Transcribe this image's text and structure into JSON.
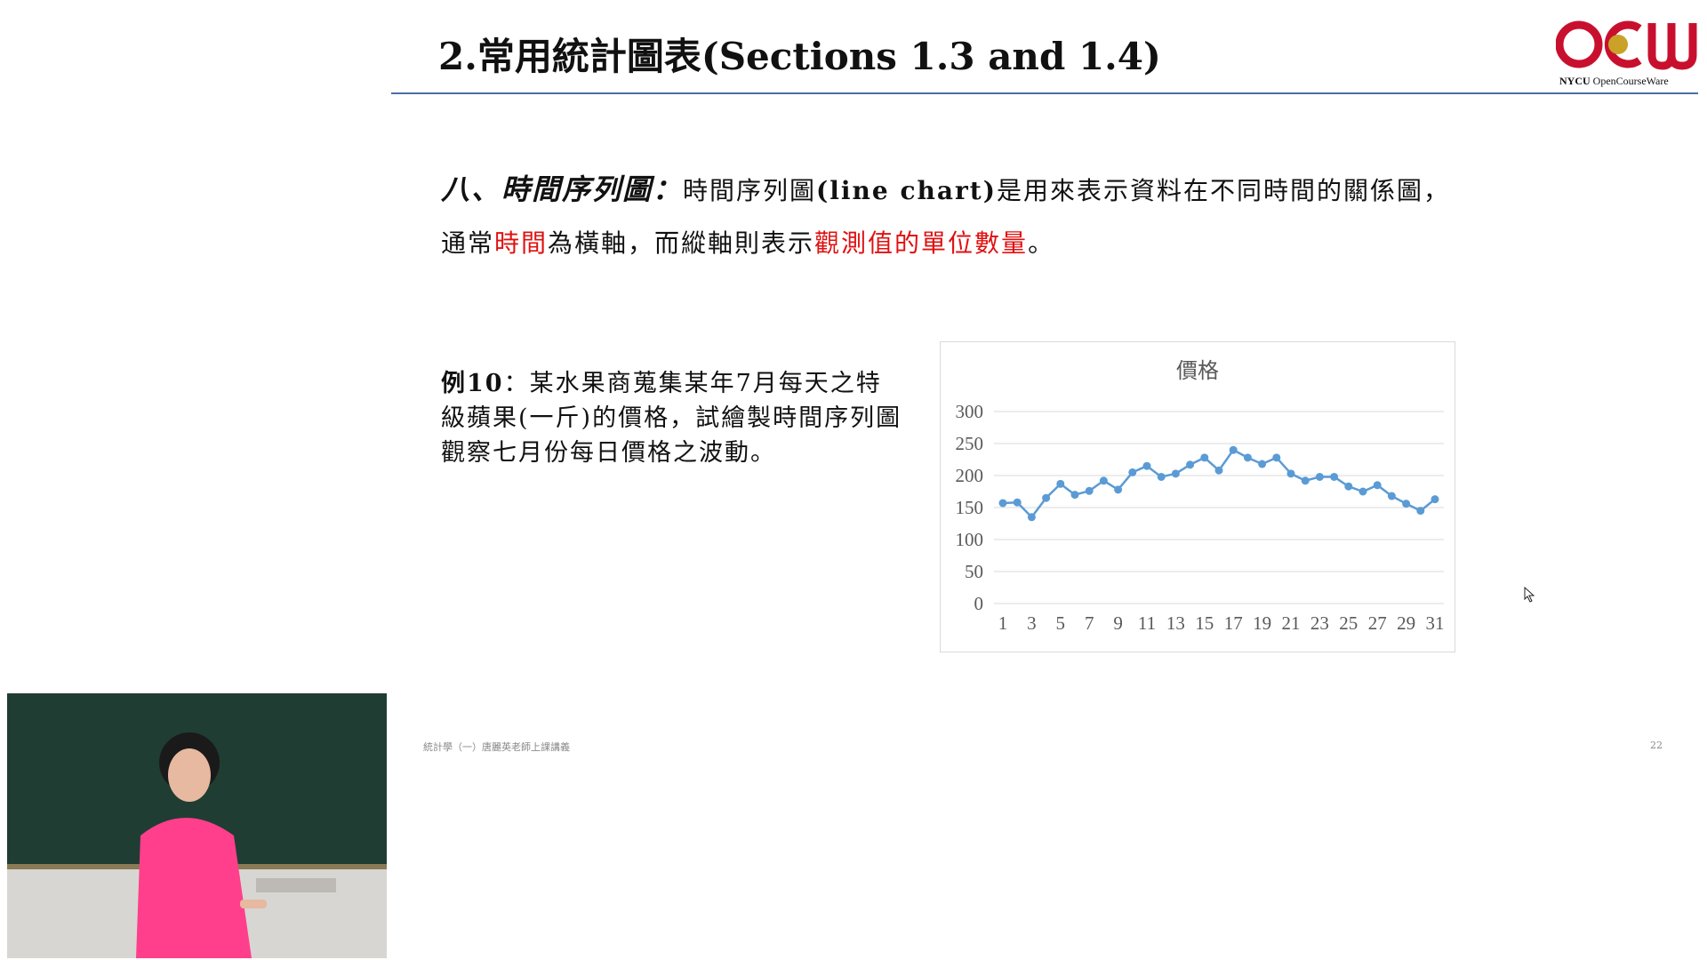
{
  "slide": {
    "title": "2.常用統計圖表(Sections 1.3 and 1.4)",
    "page_number": "22",
    "footer": "統計學（一）唐麗英老師上課講義"
  },
  "logo": {
    "brand_text": "NYCU",
    "brand_sub": " OpenCourseWare",
    "colors": {
      "red": "#c8102e",
      "gold": "#c9a227"
    }
  },
  "definition": {
    "term": "八、時間序列圖：",
    "line1_a": "時間序列圖",
    "line1_b": "(line chart)",
    "line1_c": "是用來表示資料在不同時間的關係圖，",
    "line2_a": "通常",
    "line2_red1": "時間",
    "line2_b": "為橫軸，而縱軸則表示",
    "line2_red2": "觀測值的單位數量",
    "line2_c": "。"
  },
  "example": {
    "label": "例10",
    "text": "：某水果商蒐集某年7月每天之特級蘋果(一斤)的價格，試繪製時間序列圖觀察七月份每日價格之波動。"
  },
  "chart_data": {
    "type": "line",
    "title": "價格",
    "xlabel": "",
    "ylabel": "",
    "x": [
      1,
      2,
      3,
      4,
      5,
      6,
      7,
      8,
      9,
      10,
      11,
      12,
      13,
      14,
      15,
      16,
      17,
      18,
      19,
      20,
      21,
      22,
      23,
      24,
      25,
      26,
      27,
      28,
      29,
      30,
      31
    ],
    "x_tick_labels": [
      "1",
      "3",
      "5",
      "7",
      "9",
      "11",
      "13",
      "15",
      "17",
      "19",
      "21",
      "23",
      "25",
      "27",
      "29",
      "31"
    ],
    "y_ticks": [
      0,
      50,
      100,
      150,
      200,
      250,
      300
    ],
    "ylim": [
      0,
      300
    ],
    "grid": true,
    "legend": "none",
    "series": [
      {
        "values": [
          157,
          158,
          135,
          165,
          187,
          170,
          176,
          192,
          178,
          205,
          215,
          198,
          203,
          217,
          228,
          208,
          240,
          228,
          218,
          228,
          203,
          192,
          198,
          198,
          183,
          175,
          185,
          168,
          156,
          145,
          163
        ],
        "color": "#5b9bd5"
      }
    ]
  }
}
